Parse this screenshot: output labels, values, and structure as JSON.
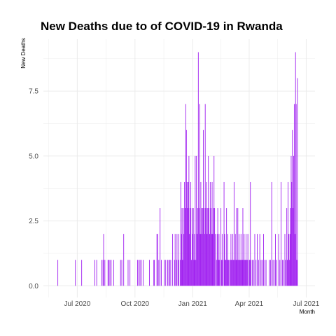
{
  "chart_data": {
    "type": "bar",
    "title": "New Deaths due to of COVID-19 in Rwanda",
    "xlabel": "Month",
    "ylabel": "New Deaths",
    "x_range": [
      "2020-05-08",
      "2021-07-15"
    ],
    "ylim": [
      -0.45,
      9.5
    ],
    "x_ticks": [
      {
        "date": "2020-07-01",
        "label": "Jul 2020"
      },
      {
        "date": "2020-10-01",
        "label": "Oct 2020"
      },
      {
        "date": "2021-01-01",
        "label": "Jan 2021"
      },
      {
        "date": "2021-04-01",
        "label": "Apr 2021"
      },
      {
        "date": "2021-07-01",
        "label": "Jul 2021"
      }
    ],
    "y_ticks": [
      {
        "value": 0,
        "label": "0.0"
      },
      {
        "value": 2.5,
        "label": "2.5"
      },
      {
        "value": 5,
        "label": "5.0"
      },
      {
        "value": 7.5,
        "label": "7.5"
      }
    ],
    "grid": true,
    "bar_color": "#a020f0",
    "grid_color": "#ebebeb",
    "series": [
      {
        "values": [
          [
            "2020-05-31",
            1
          ],
          [
            "2020-06-28",
            1
          ],
          [
            "2020-07-08",
            1
          ],
          [
            "2020-07-29",
            1
          ],
          [
            "2020-08-01",
            1
          ],
          [
            "2020-08-09",
            1
          ],
          [
            "2020-08-11",
            1
          ],
          [
            "2020-08-12",
            2
          ],
          [
            "2020-08-14",
            1
          ],
          [
            "2020-08-19",
            1
          ],
          [
            "2020-08-20",
            1
          ],
          [
            "2020-08-22",
            1
          ],
          [
            "2020-08-24",
            1
          ],
          [
            "2020-08-28",
            1
          ],
          [
            "2020-09-08",
            1
          ],
          [
            "2020-09-10",
            1
          ],
          [
            "2020-09-13",
            2
          ],
          [
            "2020-09-20",
            1
          ],
          [
            "2020-09-23",
            1
          ],
          [
            "2020-10-05",
            1
          ],
          [
            "2020-10-07",
            1
          ],
          [
            "2020-10-09",
            1
          ],
          [
            "2020-10-11",
            1
          ],
          [
            "2020-10-14",
            1
          ],
          [
            "2020-10-24",
            1
          ],
          [
            "2020-10-31",
            1
          ],
          [
            "2020-11-01",
            1
          ],
          [
            "2020-11-05",
            2
          ],
          [
            "2020-11-06",
            2
          ],
          [
            "2020-11-08",
            1
          ],
          [
            "2020-11-10",
            3
          ],
          [
            "2020-11-12",
            1
          ],
          [
            "2020-11-17",
            1
          ],
          [
            "2020-11-19",
            1
          ],
          [
            "2020-11-22",
            1
          ],
          [
            "2020-11-24",
            1
          ],
          [
            "2020-11-25",
            1
          ],
          [
            "2020-11-27",
            1
          ],
          [
            "2020-11-30",
            2
          ],
          [
            "2020-12-03",
            1
          ],
          [
            "2020-12-04",
            2
          ],
          [
            "2020-12-06",
            1
          ],
          [
            "2020-12-07",
            2
          ],
          [
            "2020-12-09",
            1
          ],
          [
            "2020-12-10",
            2
          ],
          [
            "2020-12-12",
            1
          ],
          [
            "2020-12-13",
            4
          ],
          [
            "2020-12-14",
            2
          ],
          [
            "2020-12-15",
            3
          ],
          [
            "2020-12-16",
            1
          ],
          [
            "2020-12-17",
            3
          ],
          [
            "2020-12-18",
            2
          ],
          [
            "2020-12-19",
            4
          ],
          [
            "2020-12-20",
            3
          ],
          [
            "2020-12-21",
            7
          ],
          [
            "2020-12-22",
            6
          ],
          [
            "2020-12-23",
            4
          ],
          [
            "2020-12-24",
            3
          ],
          [
            "2020-12-25",
            4
          ],
          [
            "2020-12-26",
            5
          ],
          [
            "2020-12-27",
            2
          ],
          [
            "2020-12-28",
            3
          ],
          [
            "2020-12-29",
            4
          ],
          [
            "2020-12-30",
            1
          ],
          [
            "2020-12-31",
            3
          ],
          [
            "2021-01-01",
            2
          ],
          [
            "2021-01-02",
            3
          ],
          [
            "2021-01-03",
            1
          ],
          [
            "2021-01-04",
            2
          ],
          [
            "2021-01-05",
            5
          ],
          [
            "2021-01-06",
            1
          ],
          [
            "2021-01-07",
            5
          ],
          [
            "2021-01-08",
            2
          ],
          [
            "2021-01-09",
            3
          ],
          [
            "2021-01-10",
            9
          ],
          [
            "2021-01-11",
            3
          ],
          [
            "2021-01-12",
            7
          ],
          [
            "2021-01-13",
            2
          ],
          [
            "2021-01-14",
            4
          ],
          [
            "2021-01-15",
            3
          ],
          [
            "2021-01-16",
            2
          ],
          [
            "2021-01-17",
            3
          ],
          [
            "2021-01-18",
            6
          ],
          [
            "2021-01-19",
            3
          ],
          [
            "2021-01-20",
            2
          ],
          [
            "2021-01-21",
            7
          ],
          [
            "2021-01-22",
            3
          ],
          [
            "2021-01-23",
            4
          ],
          [
            "2021-01-24",
            2
          ],
          [
            "2021-01-25",
            3
          ],
          [
            "2021-01-26",
            5
          ],
          [
            "2021-01-27",
            3
          ],
          [
            "2021-01-28",
            2
          ],
          [
            "2021-01-29",
            4
          ],
          [
            "2021-01-30",
            3
          ],
          [
            "2021-01-31",
            2
          ],
          [
            "2021-02-01",
            4
          ],
          [
            "2021-02-02",
            2
          ],
          [
            "2021-02-03",
            3
          ],
          [
            "2021-02-04",
            5
          ],
          [
            "2021-02-05",
            3
          ],
          [
            "2021-02-06",
            2
          ],
          [
            "2021-02-08",
            1
          ],
          [
            "2021-02-09",
            2
          ],
          [
            "2021-02-10",
            3
          ],
          [
            "2021-02-11",
            1
          ],
          [
            "2021-02-12",
            2
          ],
          [
            "2021-02-13",
            1
          ],
          [
            "2021-02-15",
            3
          ],
          [
            "2021-02-16",
            1
          ],
          [
            "2021-02-17",
            2
          ],
          [
            "2021-02-18",
            1
          ],
          [
            "2021-02-20",
            4
          ],
          [
            "2021-02-21",
            2
          ],
          [
            "2021-02-22",
            1
          ],
          [
            "2021-02-23",
            1
          ],
          [
            "2021-02-24",
            3
          ],
          [
            "2021-02-25",
            1
          ],
          [
            "2021-02-26",
            2
          ],
          [
            "2021-02-27",
            1
          ],
          [
            "2021-02-28",
            1
          ],
          [
            "2021-03-02",
            1
          ],
          [
            "2021-03-03",
            2
          ],
          [
            "2021-03-04",
            1
          ],
          [
            "2021-03-05",
            1
          ],
          [
            "2021-03-06",
            2
          ],
          [
            "2021-03-07",
            1
          ],
          [
            "2021-03-08",
            4
          ],
          [
            "2021-03-09",
            1
          ],
          [
            "2021-03-10",
            2
          ],
          [
            "2021-03-11",
            1
          ],
          [
            "2021-03-12",
            3
          ],
          [
            "2021-03-13",
            1
          ],
          [
            "2021-03-14",
            3
          ],
          [
            "2021-03-15",
            1
          ],
          [
            "2021-03-16",
            2
          ],
          [
            "2021-03-17",
            1
          ],
          [
            "2021-03-18",
            1
          ],
          [
            "2021-03-19",
            2
          ],
          [
            "2021-03-20",
            1
          ],
          [
            "2021-03-21",
            1
          ],
          [
            "2021-03-22",
            3
          ],
          [
            "2021-03-23",
            1
          ],
          [
            "2021-03-24",
            2
          ],
          [
            "2021-03-25",
            1
          ],
          [
            "2021-03-26",
            1
          ],
          [
            "2021-03-27",
            2
          ],
          [
            "2021-03-28",
            1
          ],
          [
            "2021-03-29",
            1
          ],
          [
            "2021-03-30",
            2
          ],
          [
            "2021-04-01",
            1
          ],
          [
            "2021-04-02",
            1
          ],
          [
            "2021-04-03",
            4
          ],
          [
            "2021-04-04",
            1
          ],
          [
            "2021-04-06",
            1
          ],
          [
            "2021-04-08",
            1
          ],
          [
            "2021-04-10",
            2
          ],
          [
            "2021-04-12",
            1
          ],
          [
            "2021-04-14",
            2
          ],
          [
            "2021-04-16",
            1
          ],
          [
            "2021-04-18",
            2
          ],
          [
            "2021-04-20",
            1
          ],
          [
            "2021-04-22",
            1
          ],
          [
            "2021-04-24",
            2
          ],
          [
            "2021-04-26",
            1
          ],
          [
            "2021-04-28",
            1
          ],
          [
            "2021-05-03",
            1
          ],
          [
            "2021-05-05",
            1
          ],
          [
            "2021-05-07",
            4
          ],
          [
            "2021-05-09",
            1
          ],
          [
            "2021-05-11",
            1
          ],
          [
            "2021-05-13",
            2
          ],
          [
            "2021-05-15",
            1
          ],
          [
            "2021-05-18",
            2
          ],
          [
            "2021-05-20",
            1
          ],
          [
            "2021-05-22",
            4
          ],
          [
            "2021-05-24",
            1
          ],
          [
            "2021-05-26",
            1
          ],
          [
            "2021-05-28",
            2
          ],
          [
            "2021-05-29",
            1
          ],
          [
            "2021-05-31",
            3
          ],
          [
            "2021-06-01",
            1
          ],
          [
            "2021-06-02",
            4
          ],
          [
            "2021-06-03",
            2
          ],
          [
            "2021-06-04",
            1
          ],
          [
            "2021-06-05",
            2
          ],
          [
            "2021-06-06",
            3
          ],
          [
            "2021-06-07",
            5
          ],
          [
            "2021-06-08",
            4
          ],
          [
            "2021-06-09",
            6
          ],
          [
            "2021-06-10",
            3
          ],
          [
            "2021-06-11",
            5
          ],
          [
            "2021-06-12",
            7
          ],
          [
            "2021-06-13",
            2
          ],
          [
            "2021-06-14",
            9
          ],
          [
            "2021-06-15",
            7
          ],
          [
            "2021-06-16",
            1
          ],
          [
            "2021-06-17",
            8
          ]
        ]
      }
    ]
  }
}
